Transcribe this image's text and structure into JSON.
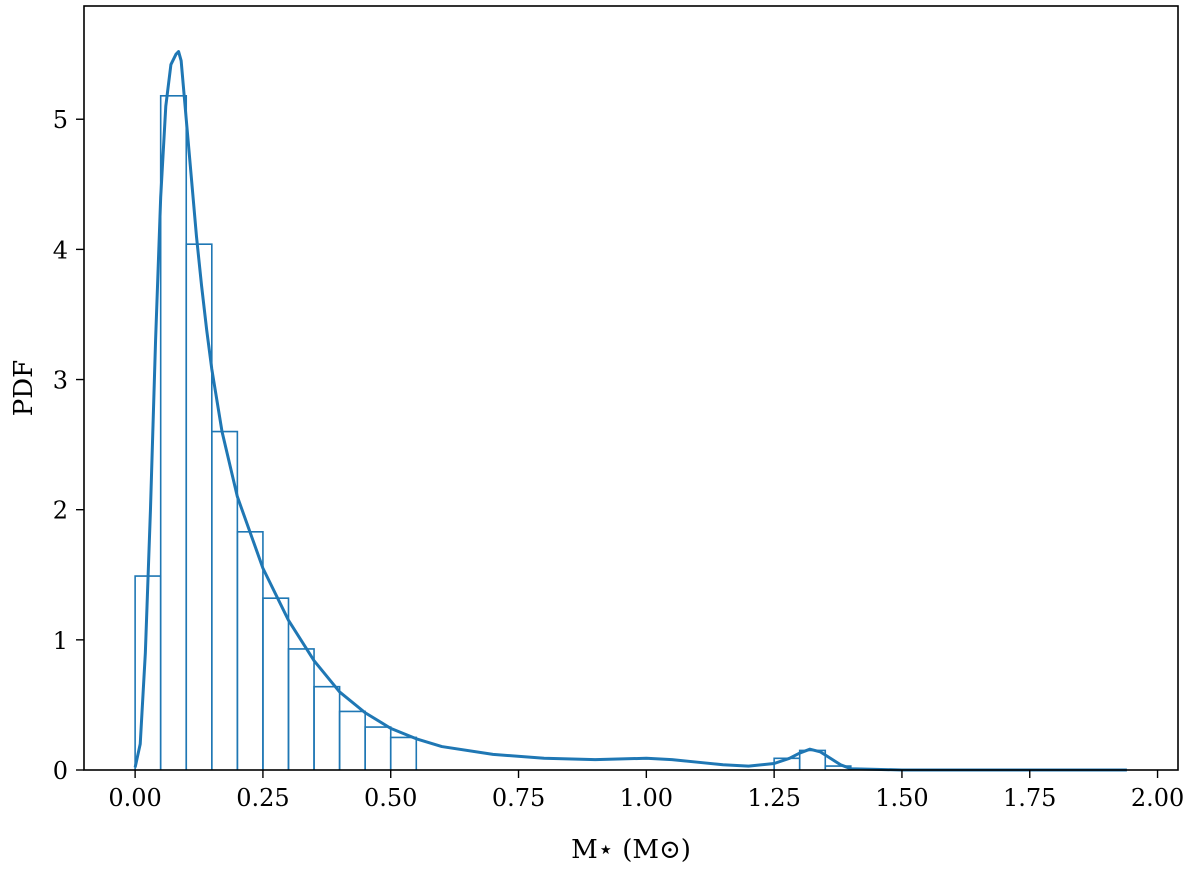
{
  "chart_data": {
    "type": "line",
    "xlabel": "M⋆ (M⊙)",
    "ylabel": "PDF",
    "xlim": [
      -0.1,
      2.04
    ],
    "ylim": [
      0,
      5.87
    ],
    "xticks": [
      0.0,
      0.25,
      0.5,
      0.75,
      1.0,
      1.25,
      1.5,
      1.75,
      2.0
    ],
    "xtick_labels": [
      "0.00",
      "0.25",
      "0.50",
      "0.75",
      "1.00",
      "1.25",
      "1.50",
      "1.75",
      "2.00"
    ],
    "yticks": [
      0,
      1,
      2,
      3,
      4,
      5
    ],
    "ytick_labels": [
      "0",
      "1",
      "2",
      "3",
      "4",
      "5"
    ],
    "grid": false,
    "color": "#1f77b4",
    "histogram": {
      "bin_edges": [
        0.0,
        0.05,
        0.1,
        0.15,
        0.2,
        0.25,
        0.3,
        0.35,
        0.4,
        0.45,
        0.5,
        0.55,
        1.25,
        1.3,
        1.35,
        1.4
      ],
      "values": [
        1.49,
        5.18,
        4.04,
        2.6,
        1.83,
        1.32,
        0.93,
        0.64,
        0.45,
        0.33,
        0.25,
        0.0,
        0.09,
        0.15,
        0.03
      ]
    },
    "series": [
      {
        "x": [
          0.0,
          0.01,
          0.02,
          0.03,
          0.04,
          0.05,
          0.06,
          0.07,
          0.08,
          0.085,
          0.09,
          0.1,
          0.11,
          0.12,
          0.13,
          0.14,
          0.15,
          0.17,
          0.2,
          0.25,
          0.3,
          0.35,
          0.4,
          0.45,
          0.5,
          0.55,
          0.6,
          0.7,
          0.8,
          0.9,
          1.0,
          1.05,
          1.1,
          1.15,
          1.2,
          1.25,
          1.28,
          1.3,
          1.32,
          1.34,
          1.36,
          1.38,
          1.4,
          1.45,
          1.5,
          1.6,
          1.75,
          1.94
        ],
        "y": [
          0.02,
          0.2,
          0.9,
          2.0,
          3.3,
          4.4,
          5.1,
          5.42,
          5.5,
          5.52,
          5.45,
          5.0,
          4.55,
          4.1,
          3.72,
          3.38,
          3.08,
          2.6,
          2.1,
          1.55,
          1.15,
          0.84,
          0.6,
          0.44,
          0.32,
          0.24,
          0.18,
          0.12,
          0.09,
          0.08,
          0.09,
          0.08,
          0.06,
          0.04,
          0.03,
          0.05,
          0.09,
          0.13,
          0.16,
          0.14,
          0.09,
          0.04,
          0.01,
          0.005,
          0.0,
          0.0,
          0.0,
          0.0
        ]
      }
    ]
  }
}
